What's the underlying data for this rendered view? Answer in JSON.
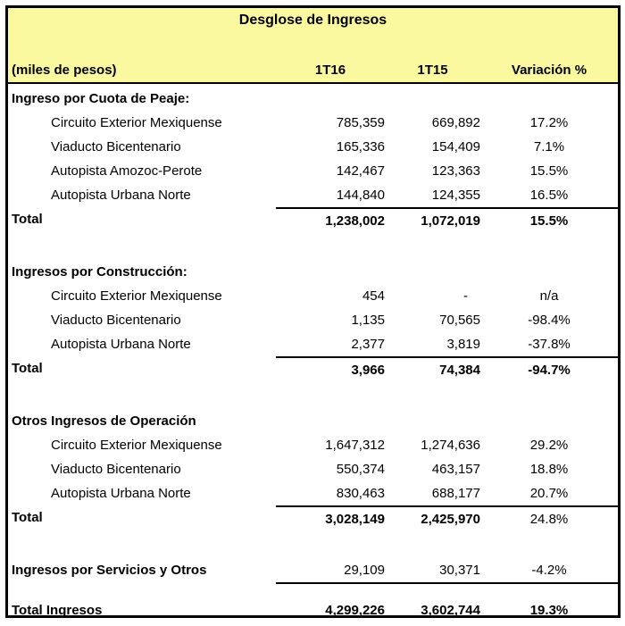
{
  "header": {
    "title": "Desglose de Ingresos",
    "unit_label": "(miles de pesos)",
    "columns": [
      "1T16",
      "1T15",
      "Variación %"
    ]
  },
  "colors": {
    "header_background": "#fbf9a0",
    "border": "#000000",
    "text": "#000000"
  },
  "sections": [
    {
      "header": "Ingreso por Cuota de Peaje:",
      "rows": [
        {
          "label": "Circuito Exterior Mexiquense",
          "v1": "785,359",
          "v2": "669,892",
          "var": "17.2%"
        },
        {
          "label": "Viaducto Bicentenario",
          "v1": "165,336",
          "v2": "154,409",
          "var": "7.1%"
        },
        {
          "label": "Autopista Amozoc-Perote",
          "v1": "142,467",
          "v2": "123,363",
          "var": "15.5%"
        },
        {
          "label": "Autopista Urbana Norte",
          "v1": "144,840",
          "v2": "124,355",
          "var": "16.5%"
        }
      ],
      "total": {
        "label": "Total",
        "v1": "1,238,002",
        "v2": "1,072,019",
        "var": "15.5%"
      }
    },
    {
      "header": "Ingresos por Construcción:",
      "rows": [
        {
          "label": "Circuito Exterior Mexiquense",
          "v1": "454",
          "v2": "-",
          "var": "n/a"
        },
        {
          "label": "Viaducto Bicentenario",
          "v1": "1,135",
          "v2": "70,565",
          "var": "-98.4%"
        },
        {
          "label": "Autopista Urbana Norte",
          "v1": "2,377",
          "v2": "3,819",
          "var": "-37.8%"
        }
      ],
      "total": {
        "label": "Total",
        "v1": "3,966",
        "v2": "74,384",
        "var": "-94.7%"
      }
    },
    {
      "header": "Otros Ingresos de Operación",
      "rows": [
        {
          "label": "Circuito Exterior Mexiquense",
          "v1": "1,647,312",
          "v2": "1,274,636",
          "var": "29.2%"
        },
        {
          "label": "Viaducto Bicentenario",
          "v1": "550,374",
          "v2": "463,157",
          "var": "18.8%"
        },
        {
          "label": "Autopista Urbana Norte",
          "v1": "830,463",
          "v2": "688,177",
          "var": "20.7%"
        }
      ],
      "total": {
        "label": "Total",
        "v1": "3,028,149",
        "v2": "2,425,970",
        "var": "24.8%"
      }
    }
  ],
  "services_row": {
    "label": "Ingresos por Servicios y Otros",
    "v1": "29,109",
    "v2": "30,371",
    "var": "-4.2%"
  },
  "grand_total": {
    "label": "Total Ingresos",
    "v1": "4,299,226",
    "v2": "3,602,744",
    "var": "19.3%"
  }
}
